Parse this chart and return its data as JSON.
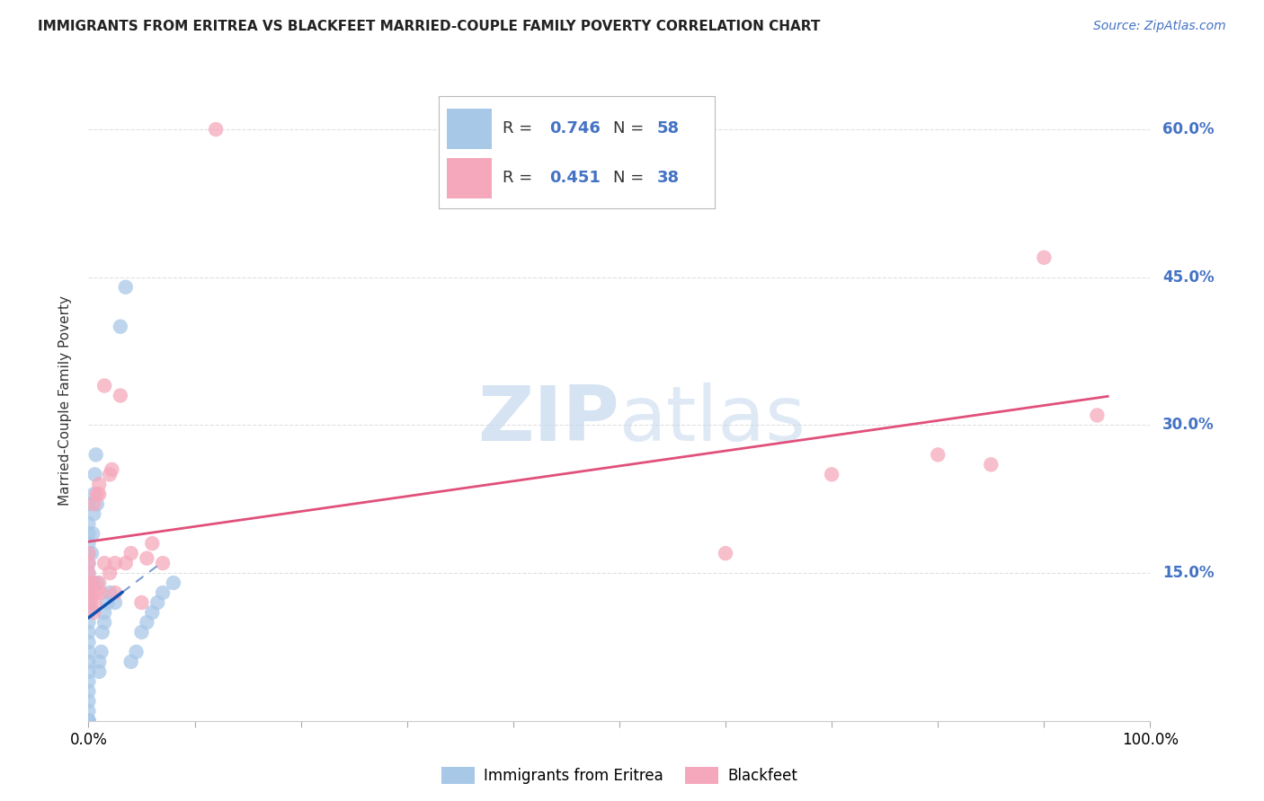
{
  "title": "IMMIGRANTS FROM ERITREA VS BLACKFEET MARRIED-COUPLE FAMILY POVERTY CORRELATION CHART",
  "source": "Source: ZipAtlas.com",
  "ylabel": "Married-Couple Family Poverty",
  "xlim": [
    0,
    100
  ],
  "ylim": [
    0,
    65
  ],
  "yticks": [
    0,
    15,
    30,
    45,
    60
  ],
  "xticks": [
    0,
    10,
    20,
    30,
    40,
    50,
    60,
    70,
    80,
    90,
    100
  ],
  "xtick_labels_show": [
    "0.0%",
    "",
    "",
    "",
    "",
    "",
    "",
    "",
    "",
    "",
    "100.0%"
  ],
  "ytick_labels": [
    "",
    "15.0%",
    "30.0%",
    "45.0%",
    "60.0%"
  ],
  "legend_labels": [
    "Immigrants from Eritrea",
    "Blackfeet"
  ],
  "blue_R": 0.746,
  "blue_N": 58,
  "pink_R": 0.451,
  "pink_N": 38,
  "blue_color": "#a8c8e8",
  "pink_color": "#f5a8bc",
  "blue_line_color": "#1050b0",
  "pink_line_color": "#e0507a",
  "blue_scatter_x": [
    0.0,
    0.0,
    0.0,
    0.0,
    0.0,
    0.0,
    0.0,
    0.0,
    0.0,
    0.0,
    0.0,
    0.0,
    0.0,
    0.0,
    0.0,
    0.0,
    0.0,
    0.0,
    0.0,
    0.0,
    0.0,
    0.0,
    0.0,
    0.0,
    0.0,
    0.0,
    0.0,
    0.0,
    0.0,
    0.0,
    0.3,
    0.3,
    0.4,
    0.5,
    0.5,
    0.6,
    0.7,
    0.8,
    0.8,
    1.0,
    1.0,
    1.2,
    1.3,
    1.5,
    1.5,
    1.8,
    2.0,
    2.5,
    3.0,
    3.5,
    4.0,
    4.5,
    5.0,
    5.5,
    6.0,
    6.5,
    7.0,
    8.0
  ],
  "blue_scatter_y": [
    0.0,
    0.0,
    0.0,
    0.0,
    0.0,
    0.0,
    0.0,
    0.0,
    0.0,
    1.0,
    2.0,
    3.0,
    4.0,
    5.0,
    6.0,
    7.0,
    8.0,
    9.0,
    10.0,
    11.0,
    12.0,
    13.0,
    14.0,
    15.0,
    16.0,
    17.0,
    18.0,
    19.0,
    20.0,
    22.0,
    14.0,
    17.0,
    19.0,
    21.0,
    23.0,
    25.0,
    27.0,
    14.0,
    22.0,
    5.0,
    6.0,
    7.0,
    9.0,
    10.0,
    11.0,
    12.0,
    13.0,
    12.0,
    40.0,
    44.0,
    6.0,
    7.0,
    9.0,
    10.0,
    11.0,
    12.0,
    13.0,
    14.0
  ],
  "pink_scatter_x": [
    0.0,
    0.0,
    0.0,
    0.0,
    0.2,
    0.3,
    0.4,
    0.5,
    0.5,
    0.6,
    0.7,
    0.8,
    1.0,
    1.0,
    1.0,
    1.2,
    1.5,
    1.5,
    2.0,
    2.0,
    2.2,
    2.5,
    2.5,
    3.0,
    3.5,
    4.0,
    5.0,
    5.5,
    6.0,
    7.0,
    12.0,
    60.0,
    70.0,
    80.0,
    85.0,
    90.0,
    95.0,
    0.0
  ],
  "pink_scatter_y": [
    13.0,
    14.0,
    15.0,
    16.0,
    12.0,
    13.0,
    14.0,
    11.0,
    22.0,
    12.0,
    13.0,
    23.0,
    14.0,
    23.0,
    24.0,
    13.0,
    16.0,
    34.0,
    15.0,
    25.0,
    25.5,
    13.0,
    16.0,
    33.0,
    16.0,
    17.0,
    12.0,
    16.5,
    18.0,
    16.0,
    60.0,
    17.0,
    25.0,
    27.0,
    26.0,
    47.0,
    31.0,
    17.0
  ],
  "blue_line_x0": 0.0,
  "blue_line_x_solid_end": 3.2,
  "blue_line_x_dash_end": 6.5,
  "pink_line_x0": 0.0,
  "pink_line_x1": 96.0,
  "watermark_zip": "ZIP",
  "watermark_atlas": "atlas",
  "background_color": "#ffffff",
  "grid_color": "#e0e0e0"
}
